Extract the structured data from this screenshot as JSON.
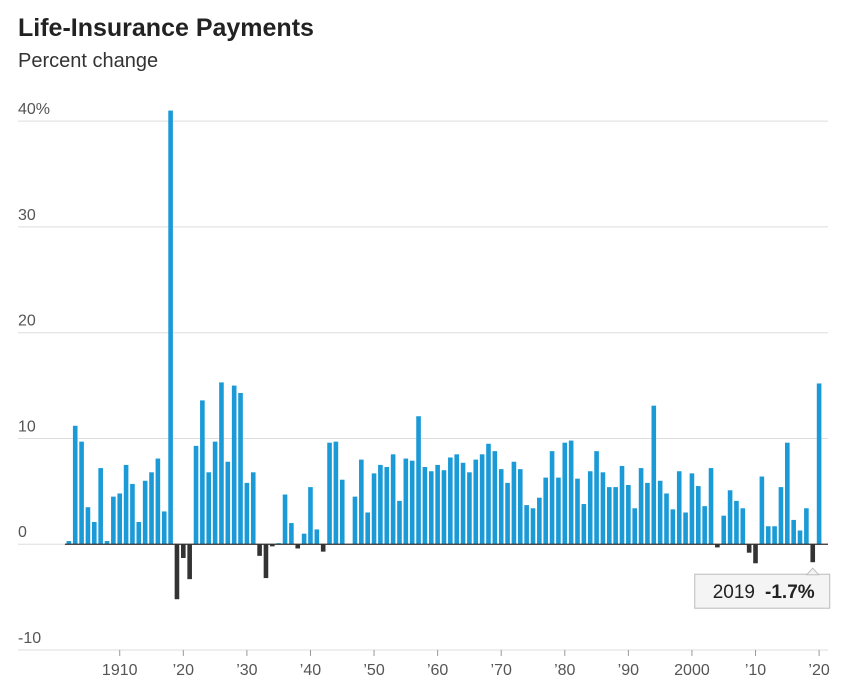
{
  "chart_data": {
    "type": "bar",
    "title": "Life-Insurance Payments",
    "subtitle": "Percent change",
    "x": [
      1902,
      1903,
      1904,
      1905,
      1906,
      1907,
      1908,
      1909,
      1910,
      1911,
      1912,
      1913,
      1914,
      1915,
      1916,
      1917,
      1918,
      1919,
      1920,
      1921,
      1922,
      1923,
      1924,
      1925,
      1926,
      1927,
      1928,
      1929,
      1930,
      1931,
      1932,
      1933,
      1934,
      1935,
      1936,
      1937,
      1938,
      1939,
      1940,
      1941,
      1942,
      1943,
      1944,
      1945,
      1946,
      1947,
      1948,
      1949,
      1950,
      1951,
      1952,
      1953,
      1954,
      1955,
      1956,
      1957,
      1958,
      1959,
      1960,
      1961,
      1962,
      1963,
      1964,
      1965,
      1966,
      1967,
      1968,
      1969,
      1970,
      1971,
      1972,
      1973,
      1974,
      1975,
      1976,
      1977,
      1978,
      1979,
      1980,
      1981,
      1982,
      1983,
      1984,
      1985,
      1986,
      1987,
      1988,
      1989,
      1990,
      1991,
      1992,
      1993,
      1994,
      1995,
      1996,
      1997,
      1998,
      1999,
      2000,
      2001,
      2002,
      2003,
      2004,
      2005,
      2006,
      2007,
      2008,
      2009,
      2010,
      2011,
      2012,
      2013,
      2014,
      2015,
      2016,
      2017,
      2018,
      2019,
      2020
    ],
    "values": [
      0.3,
      11.2,
      9.7,
      3.5,
      2.1,
      7.2,
      0.3,
      4.5,
      4.8,
      7.5,
      5.7,
      2.1,
      6.0,
      6.8,
      8.1,
      3.1,
      41,
      -5.2,
      -1.3,
      -3.3,
      9.3,
      13.6,
      6.8,
      9.7,
      15.3,
      7.8,
      15.0,
      14.3,
      5.8,
      6.8,
      -1.1,
      -3.2,
      -0.2,
      0.1,
      4.7,
      2.0,
      -0.4,
      1.0,
      5.4,
      1.4,
      -0.7,
      9.6,
      9.7,
      6.1,
      0,
      4.5,
      8.0,
      3.0,
      6.7,
      7.5,
      7.3,
      8.5,
      4.1,
      8.1,
      7.9,
      12.1,
      7.3,
      6.9,
      7.5,
      7.0,
      8.2,
      8.5,
      7.7,
      6.8,
      8.0,
      8.5,
      9.5,
      8.8,
      7.1,
      5.8,
      7.8,
      7.1,
      3.7,
      3.4,
      4.4,
      6.3,
      8.8,
      6.3,
      9.6,
      9.8,
      6.2,
      3.8,
      6.9,
      8.8,
      6.8,
      5.4,
      5.4,
      7.4,
      5.6,
      3.4,
      7.2,
      5.8,
      13.1,
      6.0,
      4.8,
      3.3,
      6.9,
      3.0,
      6.7,
      5.5,
      3.6,
      7.2,
      -0.3,
      2.7,
      5.1,
      4.1,
      3.4,
      -0.8,
      -1.8,
      6.4,
      1.7,
      1.7,
      5.4,
      9.6,
      2.3,
      1.3,
      3.4,
      -1.7,
      15.2
    ],
    "color": "#1a9ad6",
    "negative_color": "#333333",
    "xlim": [
      1894,
      2021.4
    ],
    "xticks": [
      {
        "value": 1910,
        "label": "1910"
      },
      {
        "value": 1920,
        "label": "’20"
      },
      {
        "value": 1930,
        "label": "’30"
      },
      {
        "value": 1940,
        "label": "’40"
      },
      {
        "value": 1950,
        "label": "’50"
      },
      {
        "value": 1960,
        "label": "’60"
      },
      {
        "value": 1970,
        "label": "’70"
      },
      {
        "value": 1980,
        "label": "’80"
      },
      {
        "value": 1990,
        "label": "’90"
      },
      {
        "value": 2000,
        "label": "2000"
      },
      {
        "value": 2010,
        "label": "’10"
      },
      {
        "value": 2020,
        "label": "’20"
      }
    ],
    "ylim": [
      -10,
      42
    ],
    "yticks": [
      -10,
      0,
      10,
      20,
      30,
      {
        "value": 40,
        "label": "40%"
      }
    ],
    "grid": true,
    "annotation": {
      "x_label": "2019",
      "value_label": "-1.7%"
    }
  }
}
